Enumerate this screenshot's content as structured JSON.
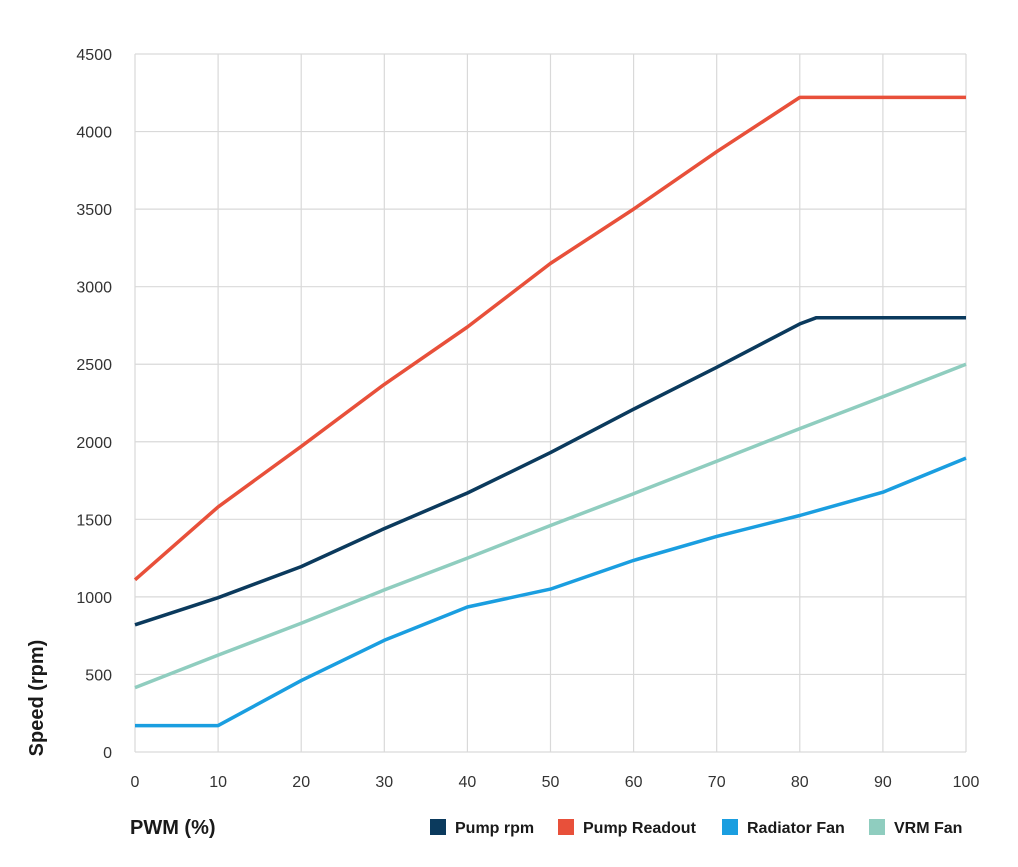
{
  "chart_data": {
    "type": "line",
    "title": "",
    "xlabel": "PWM (%)",
    "ylabel": "Speed (rpm)",
    "xlim": [
      0,
      100
    ],
    "ylim": [
      0,
      4500
    ],
    "x_ticks": [
      0,
      10,
      20,
      30,
      40,
      50,
      60,
      70,
      80,
      90,
      100
    ],
    "y_ticks": [
      0,
      500,
      1000,
      1500,
      2000,
      2500,
      3000,
      3500,
      4000,
      4500
    ],
    "grid": true,
    "legend_position": "bottom-right",
    "series": [
      {
        "name": "Pump rpm",
        "color": "#0b3a5d",
        "points": [
          [
            0,
            820
          ],
          [
            10,
            995
          ],
          [
            20,
            1195
          ],
          [
            30,
            1440
          ],
          [
            40,
            1670
          ],
          [
            50,
            1930
          ],
          [
            60,
            2210
          ],
          [
            70,
            2480
          ],
          [
            80,
            2760
          ],
          [
            82,
            2800
          ],
          [
            90,
            2800
          ],
          [
            100,
            2800
          ]
        ]
      },
      {
        "name": "Pump Readout",
        "color": "#e8503a",
        "points": [
          [
            0,
            1110
          ],
          [
            10,
            1580
          ],
          [
            20,
            1970
          ],
          [
            30,
            2370
          ],
          [
            40,
            2740
          ],
          [
            50,
            3150
          ],
          [
            60,
            3500
          ],
          [
            70,
            3870
          ],
          [
            80,
            4220
          ],
          [
            90,
            4220
          ],
          [
            100,
            4220
          ]
        ]
      },
      {
        "name": "Radiator Fan",
        "color": "#1a9ee0",
        "points": [
          [
            0,
            170
          ],
          [
            10,
            170
          ],
          [
            20,
            460
          ],
          [
            30,
            720
          ],
          [
            40,
            935
          ],
          [
            50,
            1050
          ],
          [
            60,
            1235
          ],
          [
            70,
            1390
          ],
          [
            80,
            1525
          ],
          [
            90,
            1675
          ],
          [
            100,
            1895
          ]
        ]
      },
      {
        "name": "VRM Fan",
        "color": "#8fcdbf",
        "points": [
          [
            0,
            415
          ],
          [
            10,
            625
          ],
          [
            20,
            830
          ],
          [
            30,
            1045
          ],
          [
            40,
            1250
          ],
          [
            50,
            1460
          ],
          [
            60,
            1665
          ],
          [
            70,
            1875
          ],
          [
            80,
            2085
          ],
          [
            90,
            2290
          ],
          [
            100,
            2500
          ]
        ]
      }
    ]
  }
}
